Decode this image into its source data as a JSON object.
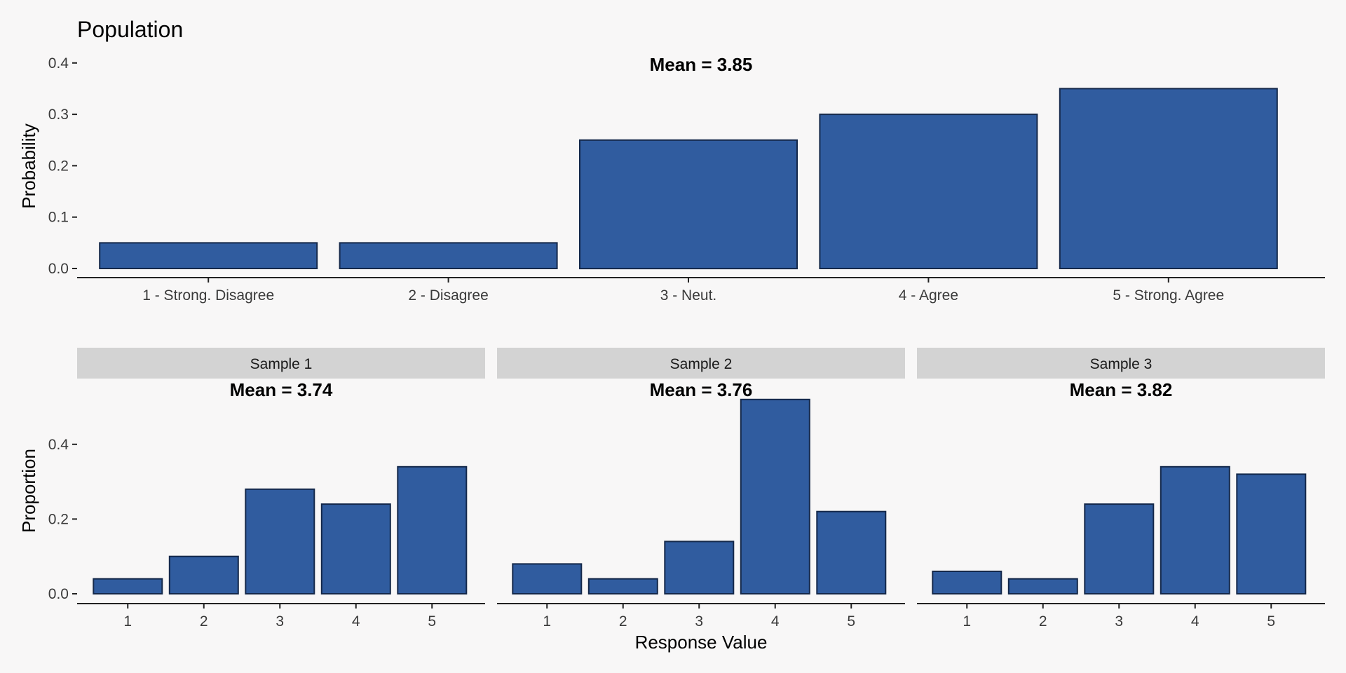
{
  "colors": {
    "background": "#f8f7f7",
    "bar_fill": "#305c9f",
    "bar_stroke": "#14284a",
    "strip_fill": "#d3d3d3",
    "axis": "#222222",
    "tick_text": "#3a3a3a"
  },
  "chart_data": [
    {
      "type": "bar",
      "title": "Population",
      "subtitle": "Mean = 3.85",
      "xlabel": "",
      "ylabel": "Probability",
      "categories": [
        "1 - Strong. Disagree",
        "2 - Disagree",
        "3 - Neut.",
        "4 - Agree",
        "5 - Strong. Agree"
      ],
      "values": [
        0.05,
        0.05,
        0.25,
        0.3,
        0.35
      ],
      "yticks": [
        "0.0",
        "0.1",
        "0.2",
        "0.3",
        "0.4"
      ],
      "ylim": [
        0,
        0.4
      ],
      "grid": false
    },
    {
      "type": "bar",
      "ylabel": "Proportion",
      "xlabel": "Response Value",
      "ylim": [
        0,
        0.52
      ],
      "yticks": [
        "0.0",
        "0.2",
        "0.4"
      ],
      "grid": false,
      "panels": [
        {
          "strip": "Sample 1",
          "subtitle": "Mean = 3.74",
          "categories": [
            "1",
            "2",
            "3",
            "4",
            "5"
          ],
          "values": [
            0.04,
            0.1,
            0.28,
            0.24,
            0.34
          ]
        },
        {
          "strip": "Sample 2",
          "subtitle": "Mean = 3.76",
          "categories": [
            "1",
            "2",
            "3",
            "4",
            "5"
          ],
          "values": [
            0.08,
            0.04,
            0.14,
            0.52,
            0.22
          ]
        },
        {
          "strip": "Sample 3",
          "subtitle": "Mean = 3.82",
          "categories": [
            "1",
            "2",
            "3",
            "4",
            "5"
          ],
          "values": [
            0.06,
            0.04,
            0.24,
            0.34,
            0.32
          ]
        }
      ]
    }
  ]
}
